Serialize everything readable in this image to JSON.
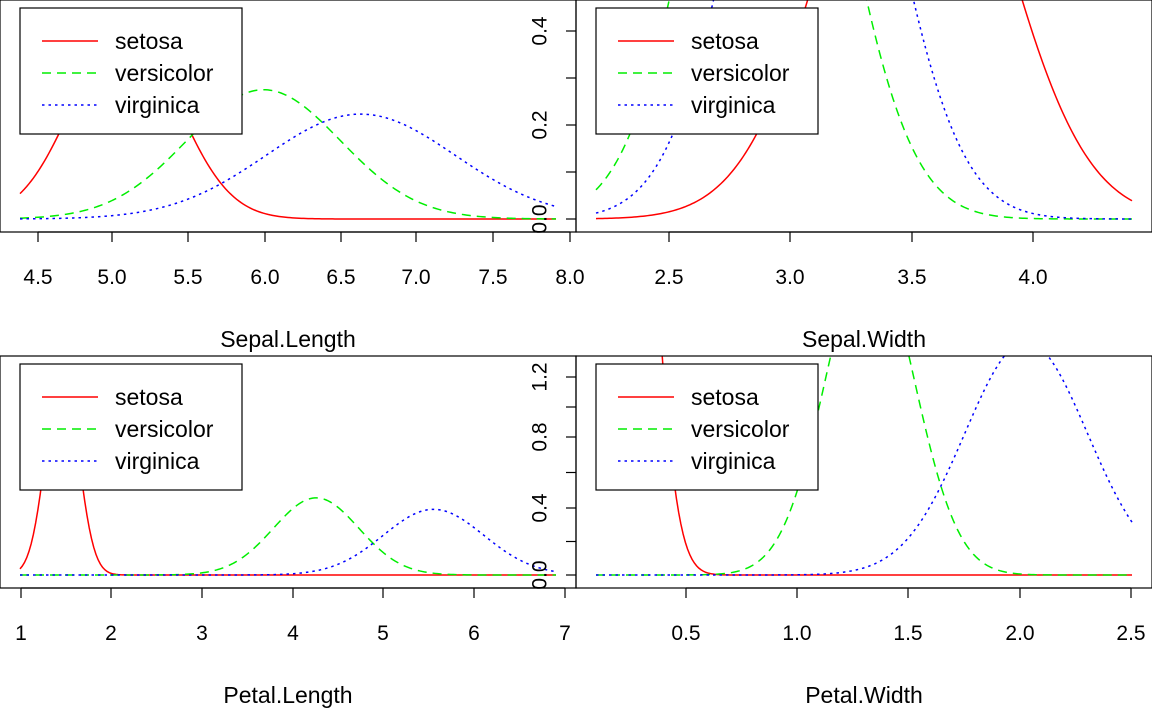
{
  "chart_data": [
    {
      "type": "line",
      "xlabel": "Sepal.Length",
      "ylabel": "",
      "xlim": [
        4.3,
        7.9
      ],
      "ylim": [
        0,
        1.25
      ],
      "x_ticks": [
        "4.5",
        "5.0",
        "5.5",
        "6.0",
        "6.5",
        "7.0",
        "7.5",
        "8.0"
      ],
      "y_ticks": [],
      "legend": "top-left",
      "series": [
        {
          "name": "setosa",
          "color": "#ff0000",
          "dash": "solid",
          "mean": 5.006,
          "sd": 0.352
        },
        {
          "name": "versicolor",
          "color": "#00ee00",
          "dash": "dashed",
          "mean": 5.936,
          "sd": 0.516
        },
        {
          "name": "virginica",
          "color": "#0000ff",
          "dash": "dotted",
          "mean": 6.588,
          "sd": 0.636
        }
      ]
    },
    {
      "type": "line",
      "xlabel": "Sepal.Width",
      "ylabel": "",
      "xlim": [
        2.0,
        4.4
      ],
      "ylim": [
        0,
        0.45
      ],
      "x_ticks": [
        "2.5",
        "3.0",
        "3.5",
        "4.0"
      ],
      "y_ticks": [
        "0.0",
        "0.2",
        "0.4"
      ],
      "legend": "top-left",
      "series": [
        {
          "name": "setosa",
          "color": "#ff0000",
          "dash": "solid",
          "mean": 3.428,
          "sd": 0.379
        },
        {
          "name": "versicolor",
          "color": "#00ee00",
          "dash": "dashed",
          "mean": 2.77,
          "sd": 0.314
        },
        {
          "name": "virginica",
          "color": "#0000ff",
          "dash": "dotted",
          "mean": 2.974,
          "sd": 0.322
        }
      ]
    },
    {
      "type": "line",
      "xlabel": "Petal.Length",
      "ylabel": "",
      "xlim": [
        1.0,
        6.9
      ],
      "ylim": [
        0,
        2.3
      ],
      "x_ticks": [
        "1",
        "2",
        "3",
        "4",
        "5",
        "6",
        "7"
      ],
      "y_ticks": [],
      "legend": "top-left",
      "series": [
        {
          "name": "setosa",
          "color": "#ff0000",
          "dash": "solid",
          "mean": 1.462,
          "sd": 0.174
        },
        {
          "name": "versicolor",
          "color": "#00ee00",
          "dash": "dashed",
          "mean": 4.26,
          "sd": 0.47
        },
        {
          "name": "virginica",
          "color": "#0000ff",
          "dash": "dotted",
          "mean": 5.552,
          "sd": 0.552
        }
      ]
    },
    {
      "type": "line",
      "xlabel": "Petal.Width",
      "ylabel": "",
      "xlim": [
        0.1,
        2.5
      ],
      "ylim": [
        0,
        1.3
      ],
      "x_ticks": [
        "0.5",
        "1.0",
        "1.5",
        "2.0",
        "2.5"
      ],
      "y_ticks": [
        "0.0",
        "0.4",
        "0.8",
        "1.2"
      ],
      "legend": "top-left",
      "series": [
        {
          "name": "setosa",
          "color": "#ff0000",
          "dash": "solid",
          "mean": 0.246,
          "sd": 0.105
        },
        {
          "name": "versicolor",
          "color": "#00ee00",
          "dash": "dashed",
          "mean": 1.326,
          "sd": 0.198
        },
        {
          "name": "virginica",
          "color": "#0000ff",
          "dash": "dotted",
          "mean": 2.026,
          "sd": 0.275
        }
      ]
    }
  ]
}
